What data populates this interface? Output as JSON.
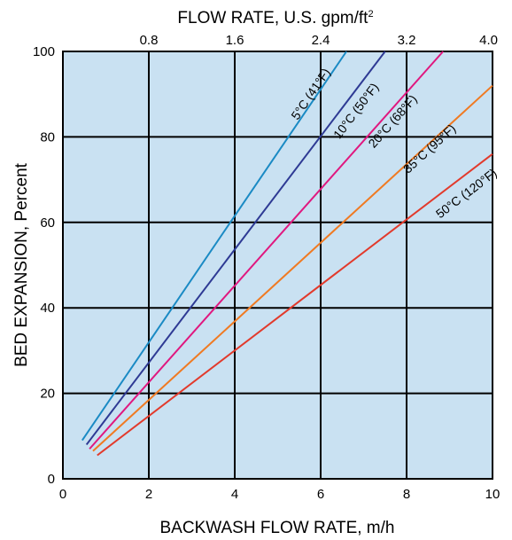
{
  "chart_data": {
    "type": "line",
    "top_axis": {
      "label_main": "FLOW RATE, U.S. gpm/ft",
      "label_sup": "2",
      "ticks": [
        {
          "value": 0.8,
          "label": "0.8"
        },
        {
          "value": 1.6,
          "label": "1.6"
        },
        {
          "value": 2.4,
          "label": "2.4"
        },
        {
          "value": 3.2,
          "label": "3.2"
        },
        {
          "value": 4.0,
          "label": "4.0"
        }
      ],
      "range": [
        0,
        4.0
      ]
    },
    "xlabel": "BACKWASH FLOW RATE, m/h",
    "ylabel": "BED EXPANSION, Percent",
    "xlim": [
      0,
      10
    ],
    "ylim": [
      0,
      100
    ],
    "xticks": [
      "0",
      "2",
      "4",
      "6",
      "8",
      "10"
    ],
    "yticks": [
      "0",
      "20",
      "40",
      "60",
      "80",
      "100"
    ],
    "grid": true,
    "background": "#c9e1f2",
    "series": [
      {
        "name": "5°C (41°F)",
        "color": "#1a8ac4",
        "x": [
          0.45,
          6.6
        ],
        "y": [
          9,
          100
        ]
      },
      {
        "name": "10°C (50°F)",
        "color": "#2e3a94",
        "x": [
          0.55,
          7.5
        ],
        "y": [
          8,
          100
        ]
      },
      {
        "name": "20°C (68°F)",
        "color": "#e0187f",
        "x": [
          0.62,
          8.85
        ],
        "y": [
          7,
          100
        ]
      },
      {
        "name": "35°C (95°F)",
        "color": "#f07a22",
        "x": [
          0.7,
          10
        ],
        "y": [
          6.5,
          92
        ]
      },
      {
        "name": "50°C (120°F)",
        "color": "#e23a2c",
        "x": [
          0.8,
          10
        ],
        "y": [
          5.5,
          76
        ]
      }
    ]
  }
}
